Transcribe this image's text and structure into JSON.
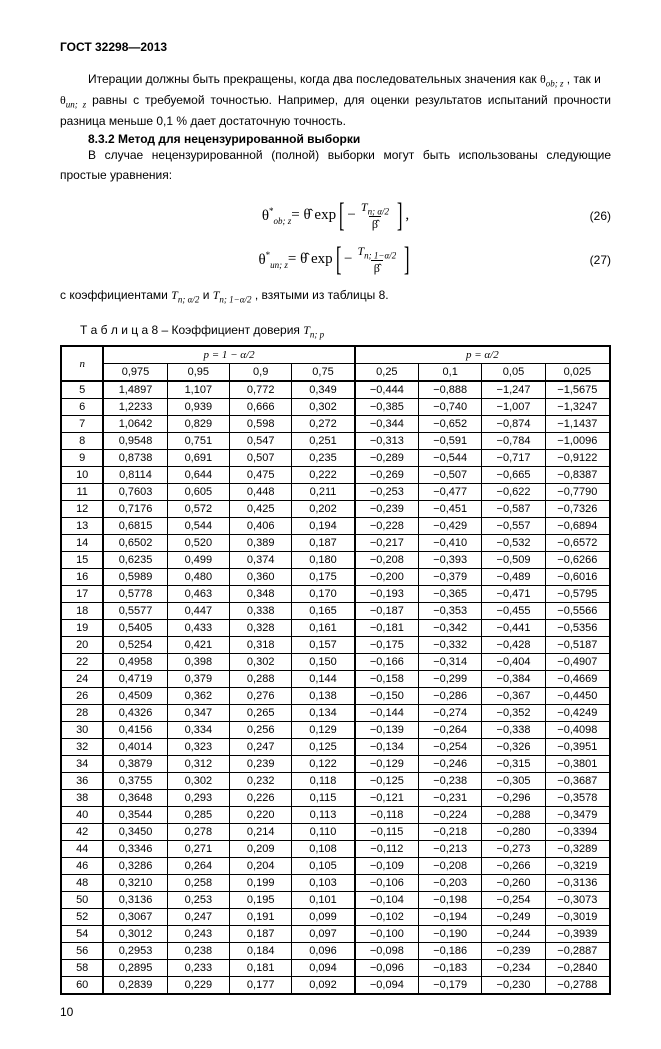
{
  "header": "ГОСТ 32298—2013",
  "para1_pre": "Итерации должны быть прекращены, когда два последовательных значения как ",
  "para1_sym1": "θ",
  "para1_sub1": "ob; z",
  "para1_mid": ", так и",
  "para2_sym": "θ",
  "para2_sub": "un; z",
  "para2_rest": " равны с требуемой точностью. Например, для оценки результатов испытаний прочности разница меньше 0,1 % дает достаточную точность.",
  "section_title": "8.3.2 Метод для нецензурированной выборки",
  "para3": "В случае нецензурированной (полной) выборки могут быть использованы следующие простые уравнения:",
  "formula26_lhs_sym": "θ",
  "formula26_lhs_sub": "ob; z",
  "formula26_eq": " = θ̂ exp",
  "formula26_num_sym": "T",
  "formula26_num_sub": "n; α/2",
  "formula26_den": "β̂",
  "formula26_tail": ",",
  "formula26_no": "(26)",
  "formula27_lhs_sym": "θ",
  "formula27_lhs_sub": "un; z",
  "formula27_eq": " = θ̂ exp",
  "formula27_num_sym": "T",
  "formula27_num_sub": "n; 1−α/2",
  "formula27_den": "β̂",
  "formula27_no": "(27)",
  "para4_pre": "с коэффициентами ",
  "para4_t1": "T",
  "para4_t1_sub": "n; α/2",
  "para4_mid": " и ",
  "para4_t2": "T",
  "para4_t2_sub": "n; 1−α/2",
  "para4_post": ", взятыми из таблицы 8.",
  "table_caption_pre": "Т а б л и ц а   8  – Коэффициент доверия ",
  "table_caption_sym": "T",
  "table_caption_sub": "n; p",
  "th_n": "n",
  "th_p1": "p = 1 − α/2",
  "th_p2": "p = α/2",
  "subheads": [
    "0,975",
    "0,95",
    "0,9",
    "0,75",
    "0,25",
    "0,1",
    "0,05",
    "0,025"
  ],
  "rows": [
    [
      "5",
      "1,4897",
      "1,107",
      "0,772",
      "0,349",
      "−0,444",
      "−0,888",
      "−1,247",
      "−1,5675"
    ],
    [
      "6",
      "1,2233",
      "0,939",
      "0,666",
      "0,302",
      "−0,385",
      "−0,740",
      "−1,007",
      "−1,3247"
    ],
    [
      "7",
      "1,0642",
      "0,829",
      "0,598",
      "0,272",
      "−0,344",
      "−0,652",
      "−0,874",
      "−1,1437"
    ],
    [
      "8",
      "0,9548",
      "0,751",
      "0,547",
      "0,251",
      "−0,313",
      "−0,591",
      "−0,784",
      "−1,0096"
    ],
    [
      "9",
      "0,8738",
      "0,691",
      "0,507",
      "0,235",
      "−0,289",
      "−0,544",
      "−0,717",
      "−0,9122"
    ],
    [
      "10",
      "0,8114",
      "0,644",
      "0,475",
      "0,222",
      "−0,269",
      "−0,507",
      "−0,665",
      "−0,8387"
    ],
    [
      "11",
      "0,7603",
      "0,605",
      "0,448",
      "0,211",
      "−0,253",
      "−0,477",
      "−0,622",
      "−0,7790"
    ],
    [
      "12",
      "0,7176",
      "0,572",
      "0,425",
      "0,202",
      "−0,239",
      "−0,451",
      "−0,587",
      "−0,7326"
    ],
    [
      "13",
      "0,6815",
      "0,544",
      "0,406",
      "0,194",
      "−0,228",
      "−0,429",
      "−0,557",
      "−0,6894"
    ],
    [
      "14",
      "0,6502",
      "0,520",
      "0,389",
      "0,187",
      "−0,217",
      "−0,410",
      "−0,532",
      "−0,6572"
    ],
    [
      "15",
      "0,6235",
      "0,499",
      "0,374",
      "0,180",
      "−0,208",
      "−0,393",
      "−0,509",
      "−0,6266"
    ],
    [
      "16",
      "0,5989",
      "0,480",
      "0,360",
      "0,175",
      "−0,200",
      "−0,379",
      "−0,489",
      "−0,6016"
    ],
    [
      "17",
      "0,5778",
      "0,463",
      "0,348",
      "0,170",
      "−0,193",
      "−0,365",
      "−0,471",
      "−0,5795"
    ],
    [
      "18",
      "0,5577",
      "0,447",
      "0,338",
      "0,165",
      "−0,187",
      "−0,353",
      "−0,455",
      "−0,5566"
    ],
    [
      "19",
      "0,5405",
      "0,433",
      "0,328",
      "0,161",
      "−0,181",
      "−0,342",
      "−0,441",
      "−0,5356"
    ],
    [
      "20",
      "0,5254",
      "0,421",
      "0,318",
      "0,157",
      "−0,175",
      "−0,332",
      "−0,428",
      "−0,5187"
    ],
    [
      "22",
      "0,4958",
      "0,398",
      "0,302",
      "0,150",
      "−0,166",
      "−0,314",
      "−0,404",
      "−0,4907"
    ],
    [
      "24",
      "0,4719",
      "0,379",
      "0,288",
      "0,144",
      "−0,158",
      "−0,299",
      "−0,384",
      "−0,4669"
    ],
    [
      "26",
      "0,4509",
      "0,362",
      "0,276",
      "0,138",
      "−0,150",
      "−0,286",
      "−0,367",
      "−0,4450"
    ],
    [
      "28",
      "0,4326",
      "0,347",
      "0,265",
      "0,134",
      "−0,144",
      "−0,274",
      "−0,352",
      "−0,4249"
    ],
    [
      "30",
      "0,4156",
      "0,334",
      "0,256",
      "0,129",
      "−0,139",
      "−0,264",
      "−0,338",
      "−0,4098"
    ],
    [
      "32",
      "0,4014",
      "0,323",
      "0,247",
      "0,125",
      "−0,134",
      "−0,254",
      "−0,326",
      "−0,3951"
    ],
    [
      "34",
      "0,3879",
      "0,312",
      "0,239",
      "0,122",
      "−0,129",
      "−0,246",
      "−0,315",
      "−0,3801"
    ],
    [
      "36",
      "0,3755",
      "0,302",
      "0,232",
      "0,118",
      "−0,125",
      "−0,238",
      "−0,305",
      "−0,3687"
    ],
    [
      "38",
      "0,3648",
      "0,293",
      "0,226",
      "0,115",
      "−0,121",
      "−0,231",
      "−0,296",
      "−0,3578"
    ],
    [
      "40",
      "0,3544",
      "0,285",
      "0,220",
      "0,113",
      "−0,118",
      "−0,224",
      "−0,288",
      "−0,3479"
    ],
    [
      "42",
      "0,3450",
      "0,278",
      "0,214",
      "0,110",
      "−0,115",
      "−0,218",
      "−0,280",
      "−0,3394"
    ],
    [
      "44",
      "0,3346",
      "0,271",
      "0,209",
      "0,108",
      "−0,112",
      "−0,213",
      "−0,273",
      "−0,3289"
    ],
    [
      "46",
      "0,3286",
      "0,264",
      "0,204",
      "0,105",
      "−0,109",
      "−0,208",
      "−0,266",
      "−0,3219"
    ],
    [
      "48",
      "0,3210",
      "0,258",
      "0,199",
      "0,103",
      "−0,106",
      "−0,203",
      "−0,260",
      "−0,3136"
    ],
    [
      "50",
      "0,3136",
      "0,253",
      "0,195",
      "0,101",
      "−0,104",
      "−0,198",
      "−0,254",
      "−0,3073"
    ],
    [
      "52",
      "0,3067",
      "0,247",
      "0,191",
      "0,099",
      "−0,102",
      "−0,194",
      "−0,249",
      "−0,3019"
    ],
    [
      "54",
      "0,3012",
      "0,243",
      "0,187",
      "0,097",
      "−0,100",
      "−0,190",
      "−0,244",
      "−0,3939"
    ],
    [
      "56",
      "0,2953",
      "0,238",
      "0,184",
      "0,096",
      "−0,098",
      "−0,186",
      "−0,239",
      "−0,2887"
    ],
    [
      "58",
      "0,2895",
      "0,233",
      "0,181",
      "0,094",
      "−0,096",
      "−0,183",
      "−0,234",
      "−0,2840"
    ],
    [
      "60",
      "0,2839",
      "0,229",
      "0,177",
      "0,092",
      "−0,094",
      "−0,179",
      "−0,230",
      "−0,2788"
    ]
  ],
  "page_num": "10"
}
